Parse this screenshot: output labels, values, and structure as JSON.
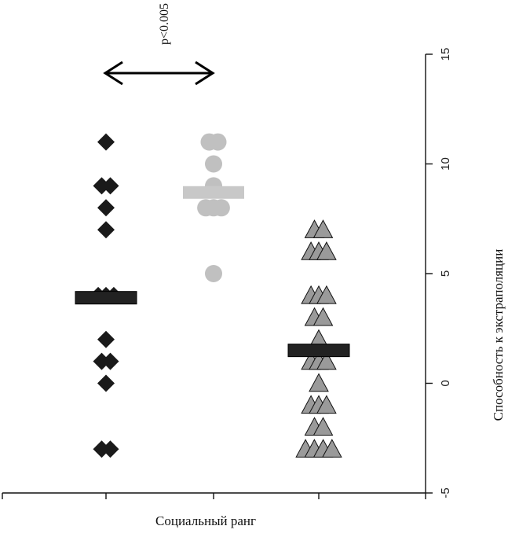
{
  "chart_data": {
    "type": "scatter",
    "orientation": "rotated",
    "xlabel": "Социальный ранг",
    "ylabel": "Способность к экстраполяции",
    "ylim": [
      -5,
      15
    ],
    "y_ticks": [
      -5,
      0,
      5,
      10,
      15
    ],
    "groups": [
      {
        "marker": "diamond",
        "color": "#1a1a1a",
        "values": [
          11,
          9,
          9,
          8,
          7,
          4,
          4,
          4,
          2,
          1,
          1,
          0,
          -3,
          -3
        ],
        "median": 3.9
      },
      {
        "marker": "circle",
        "color": "#c0c0c0",
        "values": [
          11,
          11,
          10,
          9,
          8,
          8,
          8,
          5
        ],
        "median": 8.7
      },
      {
        "marker": "triangle",
        "color": "#9a9a9a",
        "values": [
          7,
          7,
          6,
          6,
          6,
          4,
          4,
          4,
          3,
          3,
          2,
          1,
          1,
          1,
          0,
          -1,
          -1,
          -1,
          -2,
          -2,
          -3,
          -3,
          -3,
          -3
        ],
        "median": 1.5
      }
    ],
    "annotations": [
      {
        "text": "p<0.005",
        "between_groups": [
          0,
          1
        ]
      }
    ]
  }
}
